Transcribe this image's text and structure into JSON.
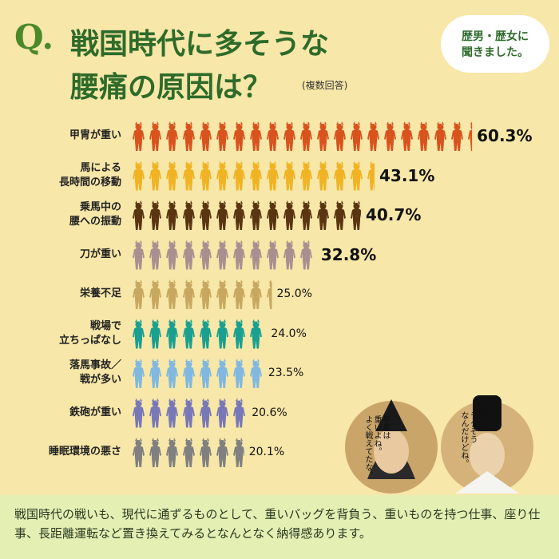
{
  "chart_data": {
    "type": "pictograph-bar",
    "title_prefix": "Q.",
    "title_lines": [
      "戦国時代に多そうな",
      "腰痛の原因は？"
    ],
    "subtitle": "(複数回答)",
    "badge": "歴男・歴女に\n聞きました。",
    "categories": [
      "甲冑が重い",
      "馬による\n長時間の移動",
      "乗馬中の\n腰への振動",
      "刀が重い",
      "栄養不足",
      "戦場で\n立ちっぱなし",
      "落馬事故／\n戦が多い",
      "鉄砲が重い",
      "睡眠環境の悪さ"
    ],
    "values": [
      60.3,
      43.1,
      40.7,
      32.8,
      25.0,
      24.0,
      23.5,
      20.6,
      20.1
    ],
    "value_labels": [
      "60.3%",
      "43.1%",
      "40.7%",
      "32.8%",
      "25.0%",
      "24.0%",
      "23.5%",
      "20.6%",
      "20.1%"
    ],
    "colors": [
      "#d9531e",
      "#f0b323",
      "#5a3512",
      "#a89090",
      "#c8a860",
      "#1aa090",
      "#80b8e0",
      "#7878b8",
      "#808080"
    ],
    "speech": [
      "甲冑は\n重いよね。\nよく戦えてたな。",
      "馬は\nラクそう\nなんだけどね。"
    ],
    "footer": "戦国時代の戦いも、現代に通ずるものとして、重いバッグを背負う、重いものを持つ仕事、座り仕事、長距離運転など置き換えてみるとなんとなく納得感あります。"
  }
}
